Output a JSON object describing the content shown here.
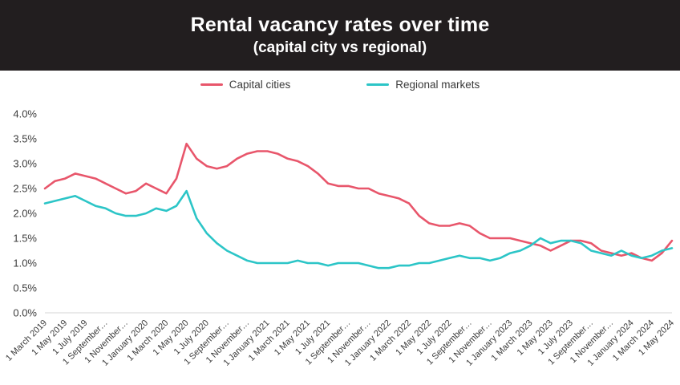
{
  "header": {
    "title": "Rental vacancy rates over time",
    "subtitle": "(capital city vs regional)"
  },
  "legend": {
    "items": [
      {
        "label": "Capital cities",
        "color": "#e8566b"
      },
      {
        "label": "Regional markets",
        "color": "#2cc5c7"
      }
    ]
  },
  "colors": {
    "header_bg": "#221e1f",
    "axis_text": "#3c3c3c",
    "axis_line": "#d6d6d6",
    "capital_line": "#e8566b",
    "regional_line": "#2cc5c7"
  },
  "chart_data": {
    "type": "line",
    "title": "Rental vacancy rates over time (capital city vs regional)",
    "grid": false,
    "legend_position": "top",
    "ylim": [
      0.0,
      4.0
    ],
    "ytick_labels": [
      "0.0%",
      "0.5%",
      "1.0%",
      "1.5%",
      "2.0%",
      "2.5%",
      "3.0%",
      "3.5%",
      "4.0%"
    ],
    "x": [
      "2019-03",
      "2019-04",
      "2019-05",
      "2019-06",
      "2019-07",
      "2019-08",
      "2019-09",
      "2019-10",
      "2019-11",
      "2019-12",
      "2020-01",
      "2020-02",
      "2020-03",
      "2020-04",
      "2020-05",
      "2020-06",
      "2020-07",
      "2020-08",
      "2020-09",
      "2020-10",
      "2020-11",
      "2020-12",
      "2021-01",
      "2021-02",
      "2021-03",
      "2021-04",
      "2021-05",
      "2021-06",
      "2021-07",
      "2021-08",
      "2021-09",
      "2021-10",
      "2021-11",
      "2021-12",
      "2022-01",
      "2022-02",
      "2022-03",
      "2022-04",
      "2022-05",
      "2022-06",
      "2022-07",
      "2022-08",
      "2022-09",
      "2022-10",
      "2022-11",
      "2022-12",
      "2023-01",
      "2023-02",
      "2023-03",
      "2023-04",
      "2023-05",
      "2023-06",
      "2023-07",
      "2023-08",
      "2023-09",
      "2023-10",
      "2023-11",
      "2023-12",
      "2024-01",
      "2024-02",
      "2024-03",
      "2024-04",
      "2024-05"
    ],
    "xtick_every": 2,
    "xtick_labels": [
      "1 March 2019",
      "1 May 2019",
      "1 July 2019",
      "1 September…",
      "1 November…",
      "1 January 2020",
      "1 March 2020",
      "1 May 2020",
      "1 July 2020",
      "1 September…",
      "1 November…",
      "1 January 2021",
      "1 March 2021",
      "1 May 2021",
      "1 July 2021",
      "1 September…",
      "1 November…",
      "1 January 2022",
      "1 March 2022",
      "1 May 2022",
      "1 July 2022",
      "1 September…",
      "1 November…",
      "1 January 2023",
      "1 March 2023",
      "1 May 2023",
      "1 July 2023",
      "1 September…",
      "1 November…",
      "1 January 2024",
      "1 March 2024",
      "1 May 2024"
    ],
    "series": [
      {
        "name": "Capital cities",
        "color": "#e8566b",
        "values": [
          2.5,
          2.65,
          2.7,
          2.8,
          2.75,
          2.7,
          2.6,
          2.5,
          2.4,
          2.45,
          2.6,
          2.5,
          2.4,
          2.7,
          3.4,
          3.1,
          2.95,
          2.9,
          2.95,
          3.1,
          3.2,
          3.25,
          3.25,
          3.2,
          3.1,
          3.05,
          2.95,
          2.8,
          2.6,
          2.55,
          2.55,
          2.5,
          2.5,
          2.4,
          2.35,
          2.3,
          2.2,
          1.95,
          1.8,
          1.75,
          1.75,
          1.8,
          1.75,
          1.6,
          1.5,
          1.5,
          1.5,
          1.45,
          1.4,
          1.35,
          1.25,
          1.35,
          1.45,
          1.45,
          1.4,
          1.25,
          1.2,
          1.15,
          1.2,
          1.1,
          1.05,
          1.2,
          1.45
        ]
      },
      {
        "name": "Regional markets",
        "color": "#2cc5c7",
        "values": [
          2.2,
          2.25,
          2.3,
          2.35,
          2.25,
          2.15,
          2.1,
          2.0,
          1.95,
          1.95,
          2.0,
          2.1,
          2.05,
          2.15,
          2.45,
          1.9,
          1.6,
          1.4,
          1.25,
          1.15,
          1.05,
          1.0,
          1.0,
          1.0,
          1.0,
          1.05,
          1.0,
          1.0,
          0.95,
          1.0,
          1.0,
          1.0,
          0.95,
          0.9,
          0.9,
          0.95,
          0.95,
          1.0,
          1.0,
          1.05,
          1.1,
          1.15,
          1.1,
          1.1,
          1.05,
          1.1,
          1.2,
          1.25,
          1.35,
          1.5,
          1.4,
          1.45,
          1.45,
          1.4,
          1.25,
          1.2,
          1.15,
          1.25,
          1.15,
          1.1,
          1.15,
          1.25,
          1.3
        ]
      }
    ]
  }
}
